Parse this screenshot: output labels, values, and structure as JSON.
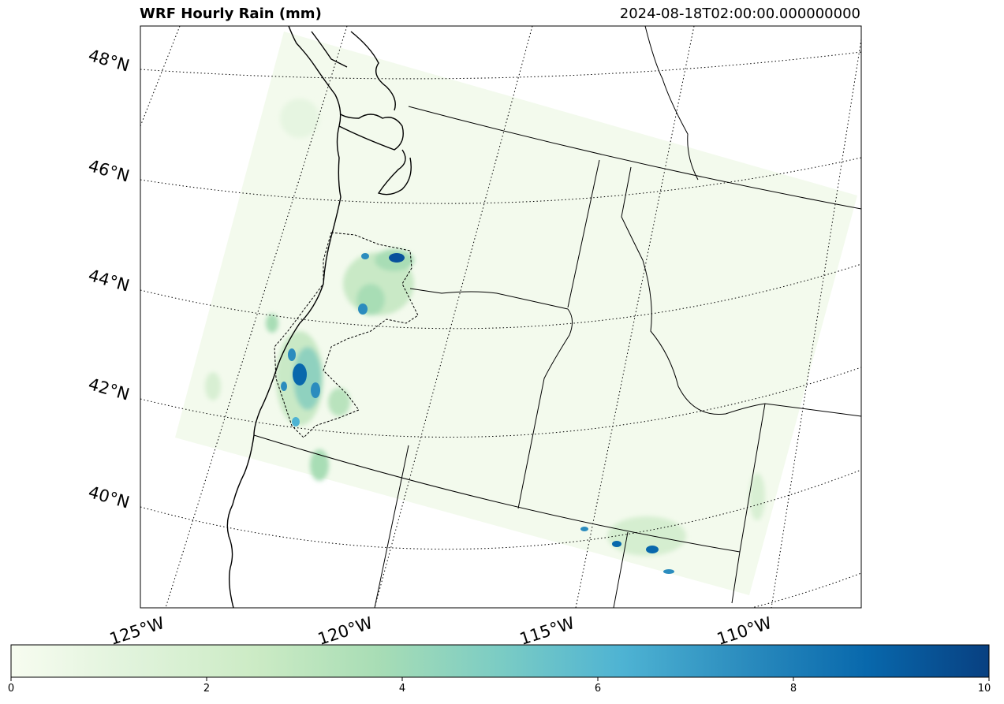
{
  "title": "WRF Hourly Rain (mm)",
  "valid_time": "2024-08-18T02:00:00.000000000",
  "latitude_labels": [
    "48°N",
    "46°N",
    "44°N",
    "42°N",
    "40°N"
  ],
  "longitude_labels": [
    "125°W",
    "120°W",
    "115°W",
    "110°W"
  ],
  "colorbar": {
    "min": 0,
    "max": 10,
    "ticks": [
      "0",
      "2",
      "4",
      "6",
      "8",
      "10"
    ],
    "colormap": [
      "#f7fcf0",
      "#e0f3db",
      "#ccebc5",
      "#a8ddb5",
      "#7bccc4",
      "#4eb3d3",
      "#2b8cbe",
      "#0868ac",
      "#084081"
    ]
  },
  "colors": {
    "domain_fill": "#f3faed",
    "heavy_rain": "#08519c",
    "coastline": "#000000"
  }
}
